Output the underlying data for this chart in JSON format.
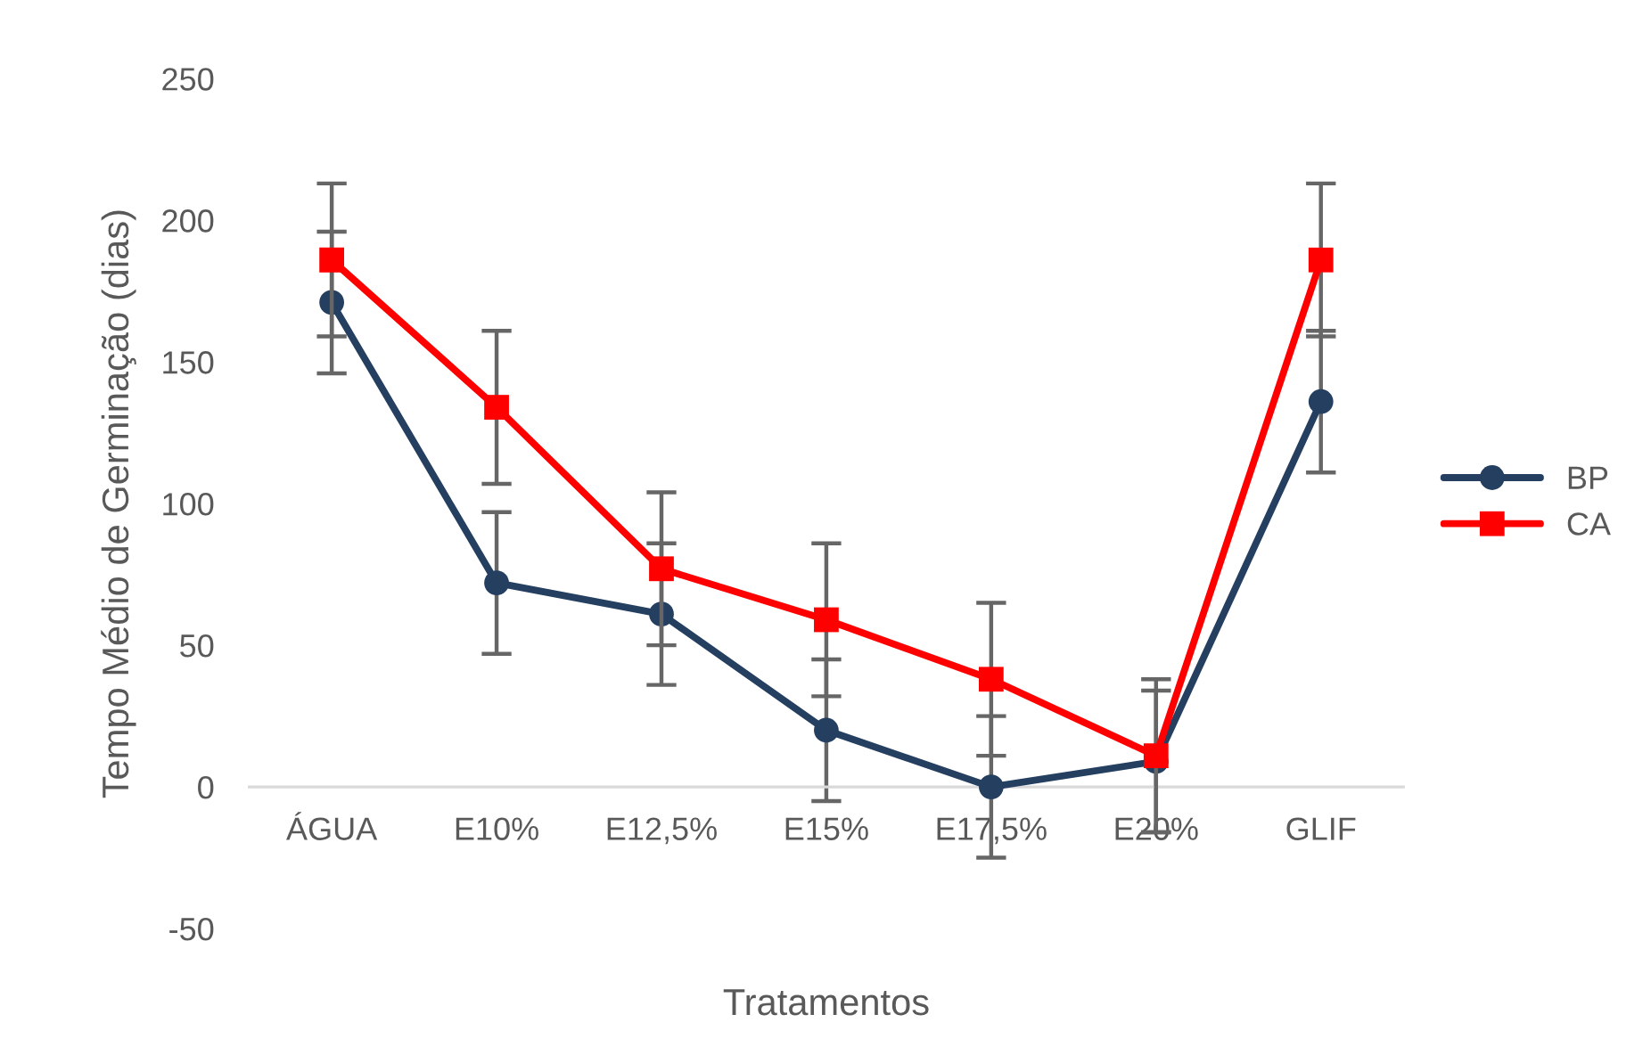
{
  "chart_data": {
    "type": "line",
    "xlabel": "Tratamentos",
    "ylabel": "Tempo Médio de Germinação (dias)",
    "categories": [
      "ÁGUA",
      "E10%",
      "E12,5%",
      "E15%",
      "E17,5%",
      "E20%",
      "GLIF"
    ],
    "series": [
      {
        "name": "BP",
        "color": "#243f60",
        "marker": "circle",
        "values": [
          171,
          72,
          61,
          20,
          0,
          9,
          136
        ],
        "errors": [
          25,
          25,
          25,
          25,
          25,
          25,
          25
        ]
      },
      {
        "name": "CA",
        "color": "#ff0000",
        "marker": "square",
        "values": [
          186,
          134,
          77,
          59,
          38,
          11,
          186
        ],
        "errors": [
          27,
          27,
          27,
          27,
          27,
          27,
          27
        ]
      }
    ],
    "ylim": [
      -50,
      250
    ],
    "yticks": [
      -50,
      0,
      50,
      100,
      150,
      200,
      250
    ],
    "grid": false,
    "legend": "right"
  }
}
